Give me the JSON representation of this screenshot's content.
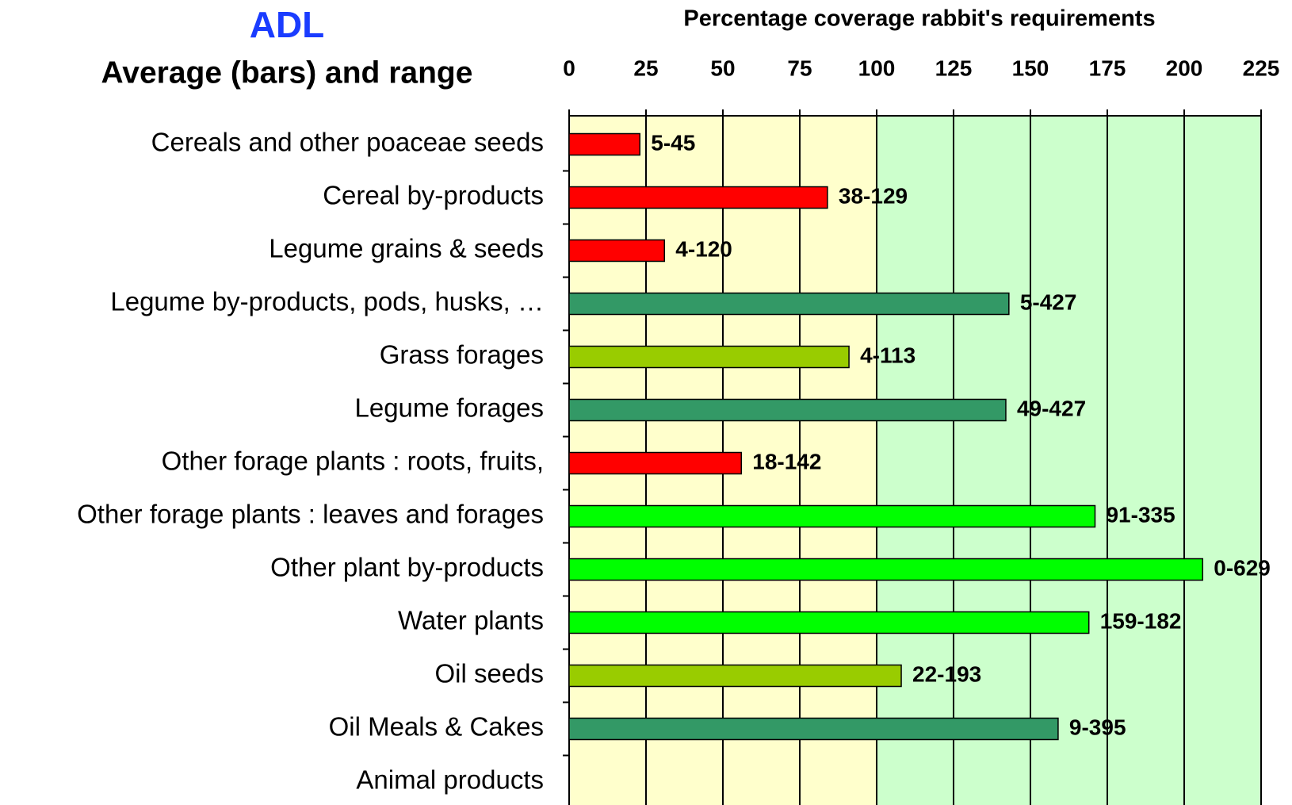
{
  "chart_data": {
    "type": "bar",
    "orientation": "horizontal",
    "title": "ADL",
    "subtitle": "Average (bars) and range",
    "x_label": "Percentage coverage rabbit's requirements",
    "categories": [
      "Cereals and other poaceae seeds",
      "Cereal by-products",
      "Legume grains & seeds",
      "Legume by-products, pods, husks, …",
      "Grass forages",
      "Legume forages",
      "Other forage plants : roots, fruits,",
      "Other forage plants : leaves and forages",
      "Other plant by-products",
      "Water plants",
      "Oil seeds",
      "Oil Meals & Cakes",
      "Animal products"
    ],
    "values": [
      23,
      84,
      31,
      143,
      91,
      142,
      56,
      171,
      206,
      169,
      108,
      159,
      null
    ],
    "ranges": [
      "5-45",
      "38-129",
      "4-120",
      "5-427",
      "4-113",
      "49-427",
      "18-142",
      "91-335",
      "0-629",
      "159-182",
      "22-193",
      "9-395",
      null
    ],
    "colors": [
      "#ff0000",
      "#ff0000",
      "#ff0000",
      "#339966",
      "#99cc00",
      "#339966",
      "#ff0000",
      "#00ff00",
      "#00ff00",
      "#00ff00",
      "#99cc00",
      "#339966",
      null
    ],
    "xlim": [
      0,
      225
    ],
    "xticks": [
      0,
      25,
      50,
      75,
      100,
      125,
      150,
      175,
      200,
      225
    ],
    "bands": [
      {
        "from": 0,
        "to": 100,
        "color": "#ffffcc"
      },
      {
        "from": 100,
        "to": 225,
        "color": "#ccffcc"
      }
    ],
    "grid": true
  }
}
